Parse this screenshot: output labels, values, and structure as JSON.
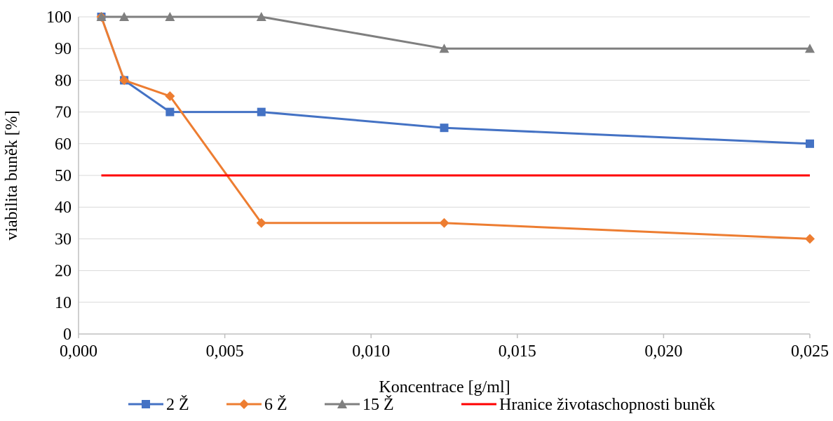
{
  "chart_data": {
    "type": "line",
    "title": "",
    "xlabel": "Koncentrace [g/ml]",
    "ylabel": "viabilita buněk [%]",
    "xlim": [
      0,
      0.025
    ],
    "ylim": [
      0,
      100
    ],
    "x_ticks": [
      "0,000",
      "0,005",
      "0,010",
      "0,015",
      "0,020",
      "0,025"
    ],
    "y_ticks": [
      "0",
      "10",
      "20",
      "30",
      "40",
      "50",
      "60",
      "70",
      "80",
      "90",
      "100"
    ],
    "grid": "horizontal",
    "legend_position": "bottom",
    "series": [
      {
        "name": "2 Ž",
        "color": "#4472C4",
        "marker": "square",
        "x": [
          0.00078,
          0.00156,
          0.003125,
          0.00625,
          0.0125,
          0.025
        ],
        "y": [
          100,
          80,
          70,
          70,
          65,
          60
        ]
      },
      {
        "name": "6 Ž",
        "color": "#ED7D31",
        "marker": "diamond",
        "x": [
          0.00078,
          0.00156,
          0.003125,
          0.00625,
          0.0125,
          0.025
        ],
        "y": [
          100,
          80,
          75,
          35,
          35,
          30
        ]
      },
      {
        "name": "15 Ž",
        "color": "#7F7F7F",
        "marker": "triangle",
        "x": [
          0.00078,
          0.00156,
          0.003125,
          0.00625,
          0.0125,
          0.025
        ],
        "y": [
          100,
          100,
          100,
          100,
          90,
          90
        ]
      },
      {
        "name": "Hranice životaschopnosti buněk",
        "color": "#FF0000",
        "marker": "none",
        "x": [
          0.00078,
          0.025
        ],
        "y": [
          50,
          50
        ]
      }
    ]
  }
}
